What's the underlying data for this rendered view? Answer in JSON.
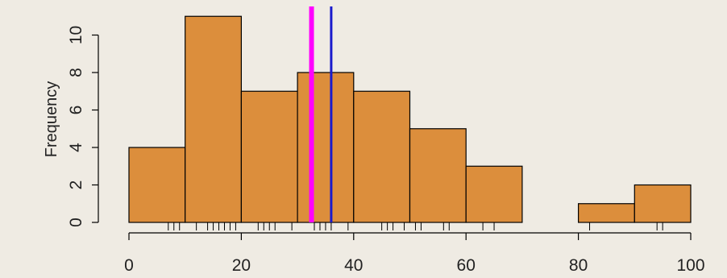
{
  "chart_data": {
    "type": "bar",
    "title": "",
    "xlabel": "",
    "ylabel": "Frequency",
    "bins": [
      {
        "start": 0,
        "end": 10,
        "count": 4
      },
      {
        "start": 10,
        "end": 20,
        "count": 11
      },
      {
        "start": 20,
        "end": 30,
        "count": 7
      },
      {
        "start": 30,
        "end": 40,
        "count": 8
      },
      {
        "start": 40,
        "end": 50,
        "count": 7
      },
      {
        "start": 50,
        "end": 60,
        "count": 5
      },
      {
        "start": 60,
        "end": 70,
        "count": 3
      },
      {
        "start": 70,
        "end": 80,
        "count": 0
      },
      {
        "start": 80,
        "end": 90,
        "count": 1
      },
      {
        "start": 90,
        "end": 100,
        "count": 2
      }
    ],
    "xlim": [
      0,
      100
    ],
    "ylim": [
      0,
      11
    ],
    "x_ticks": [
      0,
      20,
      40,
      60,
      80,
      100
    ],
    "x_tick_labels": [
      "0",
      "20",
      "40",
      "60",
      "80",
      "100"
    ],
    "y_ticks": [
      0,
      2,
      4,
      6,
      8,
      10
    ],
    "y_tick_labels": [
      "0",
      "2",
      "4",
      "6",
      "8",
      "10"
    ],
    "rug": [
      7,
      8,
      9,
      12,
      14,
      15,
      16,
      17,
      18,
      19,
      23,
      24,
      25,
      26,
      29,
      33,
      34,
      35,
      36,
      39,
      45,
      46,
      47,
      49,
      51,
      52,
      56,
      57,
      63,
      65,
      82,
      94,
      95
    ],
    "vlines": [
      {
        "name": "magenta",
        "x": 32.5,
        "color": "#ff00ff"
      },
      {
        "name": "blue",
        "x": 36,
        "color": "#1a1acc"
      }
    ],
    "bar_color": "#dc8e3c",
    "background": "#efebe3",
    "grid": false
  }
}
